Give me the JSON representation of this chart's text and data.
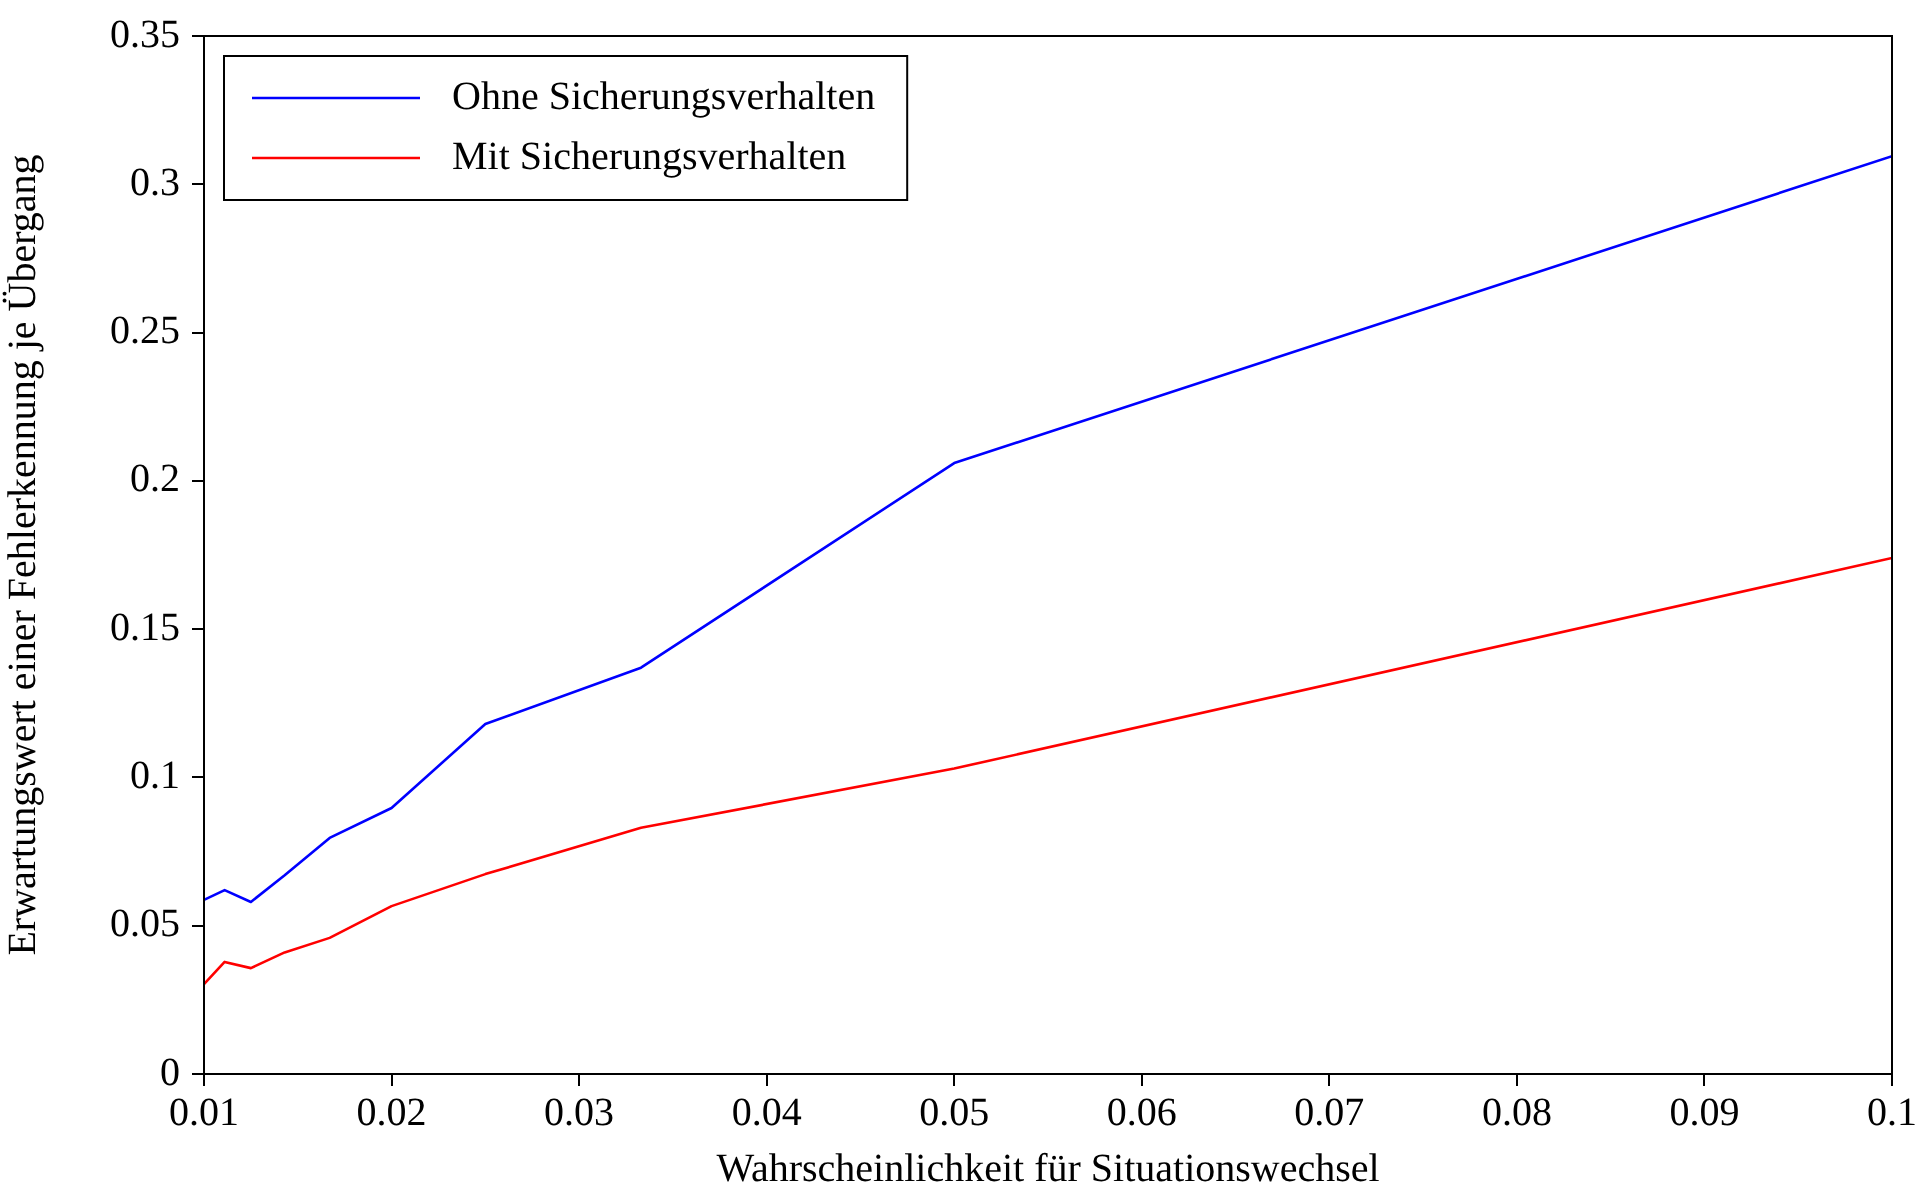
{
  "chart_data": {
    "type": "line",
    "xlabel": "Wahrscheinlichkeit für Situationswechsel",
    "ylabel": "Erwartungswert einer Fehlerkennung je Übergang",
    "x": [
      0.01,
      0.0111,
      0.0125,
      0.0143,
      0.0167,
      0.02,
      0.025,
      0.0333,
      0.05,
      0.1
    ],
    "series": [
      {
        "name": "Ohne Sicherungsverhalten",
        "color": "#0000ff",
        "values": [
          0.0587,
          0.062,
          0.058,
          0.067,
          0.0796,
          0.0897,
          0.118,
          0.137,
          0.206,
          0.3095
        ]
      },
      {
        "name": "Mit Sicherungsverhalten",
        "color": "#ff0000",
        "values": [
          0.0303,
          0.0378,
          0.0357,
          0.041,
          0.0459,
          0.0566,
          0.0674,
          0.083,
          0.103,
          0.174
        ]
      }
    ],
    "xlim": [
      0.01,
      0.1
    ],
    "xticks": [
      0.01,
      0.02,
      0.03,
      0.04,
      0.05,
      0.06,
      0.07,
      0.08,
      0.09,
      0.1
    ],
    "ylim": [
      0,
      0.35
    ],
    "yticks": [
      0,
      0.05,
      0.1,
      0.15,
      0.2,
      0.25,
      0.3,
      0.35
    ],
    "grid": false,
    "legend": "top left",
    "marker": "none",
    "line_style": "solid"
  }
}
